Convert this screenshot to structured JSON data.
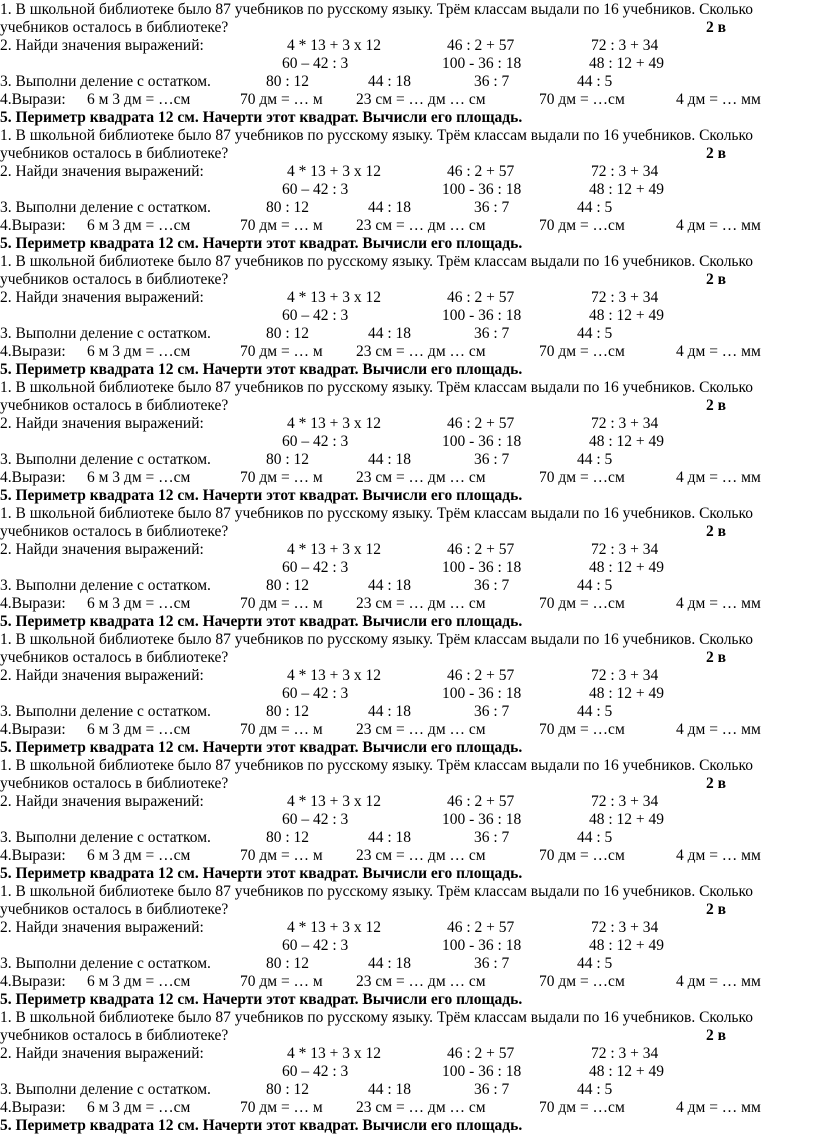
{
  "blocks": [
    {
      "task1": "1. В школьной библиотеке было 87 учебников по русскому языку. Трём классам выдали по 16 учебников. Сколько учебников осталось в библиотеке?",
      "variant": "2 в",
      "task2": {
        "label": "2. Найди значения выражений:",
        "expressions": [
          "4 * 13 + 3 x 12",
          "46 : 2 + 57",
          "72 : 3 + 34",
          "60 – 42 : 3",
          "100 - 36 : 18",
          "48 : 12 + 49"
        ]
      },
      "task3": {
        "label": "3. Выполни деление с остатком.",
        "expressions": [
          "80 : 12",
          "44 : 18",
          "36 : 7",
          "44 : 5"
        ]
      },
      "task4": {
        "label": "4.Вырази:",
        "items": [
          "6 м 3 дм = …см",
          "70 дм = … м",
          "23 см = … дм … см",
          "70 дм = …см",
          "4 дм = … мм"
        ]
      },
      "task5": "5. Периметр квадрата 12 см. Начерти этот квадрат. Вычисли его площадь."
    },
    {
      "task1": "1. В школьной библиотеке было 87 учебников по русскому языку. Трём классам выдали по 16 учебников. Сколько учебников осталось в библиотеке?",
      "variant": "2 в",
      "task2": {
        "label": "2. Найди значения выражений:",
        "expressions": [
          "4 * 13 + 3 x 12",
          "46 : 2 + 57",
          "72 : 3 + 34",
          "60 – 42 : 3",
          "100 - 36 : 18",
          "48 : 12 + 49"
        ]
      },
      "task3": {
        "label": "3. Выполни деление с остатком.",
        "expressions": [
          "80 : 12",
          "44 : 18",
          "36 : 7",
          "44 : 5"
        ]
      },
      "task4": {
        "label": "4.Вырази:",
        "items": [
          "6 м 3 дм = …см",
          "70 дм = … м",
          "23 см = … дм … см",
          "70 дм = …см",
          "4 дм = … мм"
        ]
      },
      "task5": "5. Периметр квадрата 12 см. Начерти этот квадрат. Вычисли его площадь."
    },
    {
      "task1": "1. В школьной библиотеке было 87 учебников по русскому языку. Трём классам выдали по 16 учебников. Сколько учебников осталось в библиотеке?",
      "variant": "2 в",
      "task2": {
        "label": "2. Найди значения выражений:",
        "expressions": [
          "4 * 13 + 3 x 12",
          "46 : 2 + 57",
          "72 : 3 + 34",
          "60 – 42 : 3",
          "100 - 36 : 18",
          "48 : 12 + 49"
        ]
      },
      "task3": {
        "label": "3. Выполни деление с остатком.",
        "expressions": [
          "80 : 12",
          "44 : 18",
          "36 : 7",
          "44 : 5"
        ]
      },
      "task4": {
        "label": "4.Вырази:",
        "items": [
          "6 м 3 дм = …см",
          "70 дм = … м",
          "23 см = … дм … см",
          "70 дм = …см",
          "4 дм = … мм"
        ]
      },
      "task5": "5. Периметр квадрата 12 см. Начерти этот квадрат. Вычисли его площадь."
    },
    {
      "task1": "1. В школьной библиотеке было 87 учебников по русскому языку. Трём классам выдали по 16 учебников. Сколько учебников осталось в библиотеке?",
      "variant": "2 в",
      "task2": {
        "label": "2. Найди значения выражений:",
        "expressions": [
          "4 * 13 + 3 x 12",
          "46 : 2 + 57",
          "72 : 3 + 34",
          "60 – 42 : 3",
          "100 - 36 : 18",
          "48 : 12 + 49"
        ]
      },
      "task3": {
        "label": "3. Выполни деление с остатком.",
        "expressions": [
          "80 : 12",
          "44 : 18",
          "36 : 7",
          "44 : 5"
        ]
      },
      "task4": {
        "label": "4.Вырази:",
        "items": [
          "6 м 3 дм = …см",
          "70 дм = … м",
          "23 см = … дм … см",
          "70 дм = …см",
          "4 дм = … мм"
        ]
      },
      "task5": "5. Периметр квадрата 12 см. Начерти этот квадрат. Вычисли его площадь."
    },
    {
      "task1": "1. В школьной библиотеке было 87 учебников по русскому языку. Трём классам выдали по 16 учебников. Сколько учебников осталось в библиотеке?",
      "variant": "2 в",
      "task2": {
        "label": "2. Найди значения выражений:",
        "expressions": [
          "4 * 13 + 3 x 12",
          "46 : 2 + 57",
          "72 : 3 + 34",
          "60 – 42 : 3",
          "100 - 36 : 18",
          "48 : 12 + 49"
        ]
      },
      "task3": {
        "label": "3. Выполни деление с остатком.",
        "expressions": [
          "80 : 12",
          "44 : 18",
          "36 : 7",
          "44 : 5"
        ]
      },
      "task4": {
        "label": "4.Вырази:",
        "items": [
          "6 м 3 дм = …см",
          "70 дм = … м",
          "23 см = … дм … см",
          "70 дм = …см",
          "4 дм = … мм"
        ]
      },
      "task5": "5. Периметр квадрата 12 см. Начерти этот квадрат. Вычисли его площадь."
    },
    {
      "task1": "1. В школьной библиотеке было 87 учебников по русскому языку. Трём классам выдали по 16 учебников. Сколько учебников осталось в библиотеке?",
      "variant": "2 в",
      "task2": {
        "label": "2. Найди значения выражений:",
        "expressions": [
          "4 * 13 + 3 x 12",
          "46 : 2 + 57",
          "72 : 3 + 34",
          "60 – 42 : 3",
          "100 - 36 : 18",
          "48 : 12 + 49"
        ]
      },
      "task3": {
        "label": "3. Выполни деление с остатком.",
        "expressions": [
          "80 : 12",
          "44 : 18",
          "36 : 7",
          "44 : 5"
        ]
      },
      "task4": {
        "label": "4.Вырази:",
        "items": [
          "6 м 3 дм = …см",
          "70 дм = … м",
          "23 см = … дм … см",
          "70 дм = …см",
          "4 дм = … мм"
        ]
      },
      "task5": "5. Периметр квадрата 12 см. Начерти этот квадрат. Вычисли его площадь."
    },
    {
      "task1": "1. В школьной библиотеке было 87 учебников по русскому языку. Трём классам выдали по 16 учебников. Сколько учебников осталось в библиотеке?",
      "variant": "2 в",
      "task2": {
        "label": "2. Найди значения выражений:",
        "expressions": [
          "4 * 13 + 3 x 12",
          "46 : 2 + 57",
          "72 : 3 + 34",
          "60 – 42 : 3",
          "100 - 36 : 18",
          "48 : 12 + 49"
        ]
      },
      "task3": {
        "label": "3. Выполни деление с остатком.",
        "expressions": [
          "80 : 12",
          "44 : 18",
          "36 : 7",
          "44 : 5"
        ]
      },
      "task4": {
        "label": "4.Вырази:",
        "items": [
          "6 м 3 дм = …см",
          "70 дм = … м",
          "23 см = … дм … см",
          "70 дм = …см",
          "4 дм = … мм"
        ]
      },
      "task5": "5. Периметр квадрата 12 см. Начерти этот квадрат. Вычисли его площадь."
    },
    {
      "task1": "1. В школьной библиотеке было 87 учебников по русскому языку. Трём классам выдали по 16 учебников. Сколько учебников осталось в библиотеке?",
      "variant": "2 в",
      "task2": {
        "label": "2. Найди значения выражений:",
        "expressions": [
          "4 * 13 + 3 x 12",
          "46 : 2 + 57",
          "72 : 3 + 34",
          "60 – 42 : 3",
          "100 - 36 : 18",
          "48 : 12 + 49"
        ]
      },
      "task3": {
        "label": "3. Выполни деление с остатком.",
        "expressions": [
          "80 : 12",
          "44 : 18",
          "36 : 7",
          "44 : 5"
        ]
      },
      "task4": {
        "label": "4.Вырази:",
        "items": [
          "6 м 3 дм = …см",
          "70 дм = … м",
          "23 см = … дм … см",
          "70 дм = …см",
          "4 дм = … мм"
        ]
      },
      "task5": "5. Периметр квадрата 12 см. Начерти этот квадрат. Вычисли его площадь."
    },
    {
      "task1": "1. В школьной библиотеке было 87 учебников по русскому языку. Трём классам выдали по 16 учебников. Сколько учебников осталось в библиотеке?",
      "variant": "2 в",
      "task2": {
        "label": "2. Найди значения выражений:",
        "expressions": [
          "4 * 13 + 3 x 12",
          "46 : 2 + 57",
          "72 : 3 + 34",
          "60 – 42 : 3",
          "100 - 36 : 18",
          "48 : 12 + 49"
        ]
      },
      "task3": {
        "label": "3. Выполни деление с остатком.",
        "expressions": [
          "80 : 12",
          "44 : 18",
          "36 : 7",
          "44 : 5"
        ]
      },
      "task4": {
        "label": "4.Вырази:",
        "items": [
          "6 м 3 дм = …см",
          "70 дм = … м",
          "23 см = … дм … см",
          "70 дм = …см",
          "4 дм = … мм"
        ]
      },
      "task5": "5. Периметр квадрата 12 см. Начерти этот квадрат. Вычисли его площадь."
    }
  ]
}
